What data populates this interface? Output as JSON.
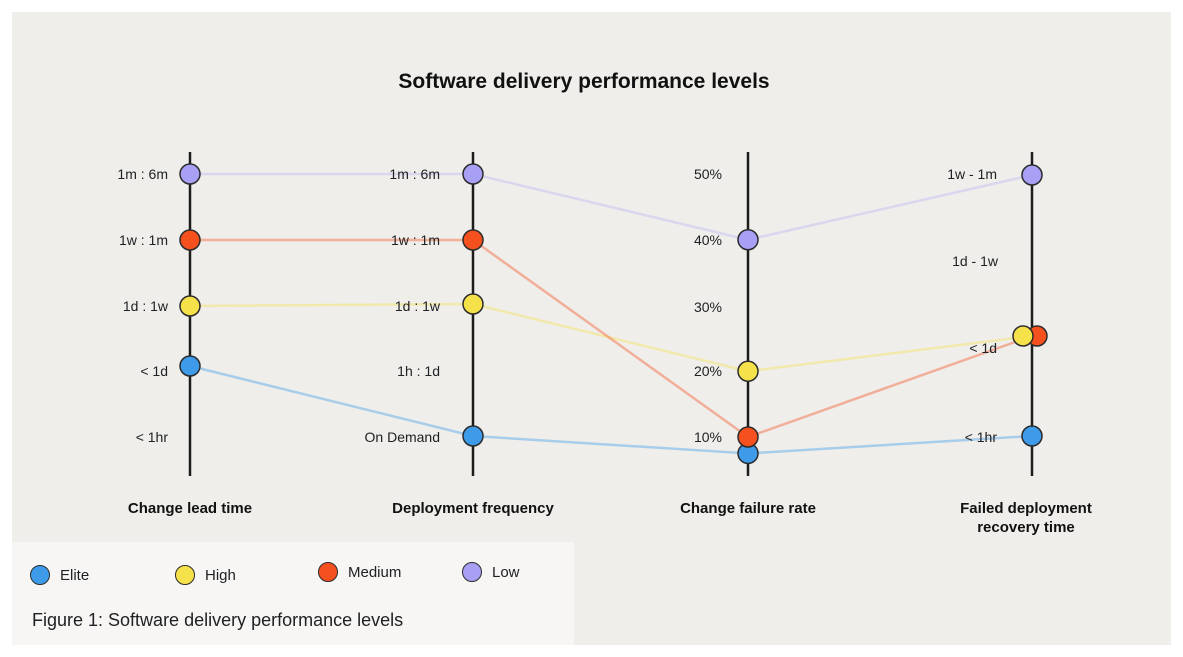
{
  "chart_data": {
    "type": "parallel-coordinates",
    "title": "Software delivery performance levels",
    "axes": [
      {
        "name": "Change lead time",
        "ticks": [
          "1m : 6m",
          "1w : 1m",
          "1d : 1w",
          "< 1d",
          "< 1hr"
        ]
      },
      {
        "name": "Deployment frequency",
        "ticks": [
          "1m : 6m",
          "1w : 1m",
          "1d : 1w",
          "1h : 1d",
          "On Demand"
        ]
      },
      {
        "name": "Change failure rate",
        "ticks": [
          "50%",
          "40%",
          "30%",
          "20%",
          "10%"
        ]
      },
      {
        "name": "Failed deployment recovery time",
        "name_lines": [
          "Failed deployment",
          "recovery time"
        ],
        "ticks": [
          "1w - 1m",
          "1d - 1w",
          "< 1d",
          "< 1hr"
        ]
      }
    ],
    "series": [
      {
        "name": "Low",
        "color": "#a8a0f5",
        "values": [
          "1m : 6m",
          "1m : 6m",
          "40%",
          "1w - 1m"
        ]
      },
      {
        "name": "Medium",
        "color": "#f4511e",
        "values": [
          "1w : 1m",
          "1w : 1m",
          "10%",
          "< 1d"
        ]
      },
      {
        "name": "High",
        "color": "#f5e14a",
        "values": [
          "1d : 1w",
          "1d : 1w",
          "20%",
          "< 1d"
        ]
      },
      {
        "name": "Elite",
        "color": "#3d9be9",
        "values": [
          "< 1d",
          "On Demand",
          "7.5%",
          "< 1hr"
        ]
      }
    ],
    "legend_order": [
      "Elite",
      "High",
      "Medium",
      "Low"
    ],
    "legend_position": "bottom-left"
  },
  "caption": "Figure 1: Software delivery performance levels"
}
